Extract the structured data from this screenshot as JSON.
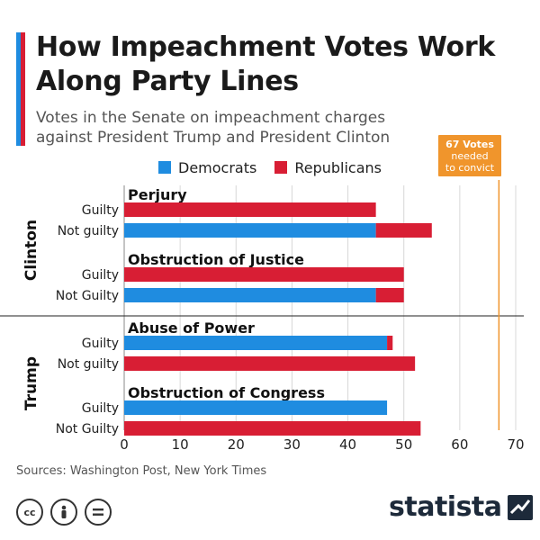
{
  "colors": {
    "democrats": "#1f8ce0",
    "republicans": "#d81e34",
    "threshold": "#f0952c",
    "accent_top": "#1f8ce0",
    "accent_bottom": "#d81e34",
    "grid": "#d8d8d8",
    "brand": "#1d2a3a"
  },
  "header": {
    "title": "How Impeachment Votes Work Along Party Lines",
    "subtitle": "Votes in the Senate on impeachment charges against President Trump and President Clinton"
  },
  "callout": {
    "line1": "67 Votes",
    "line2": "needed",
    "line3": "to convict"
  },
  "footer": {
    "source": "Sources: Washington Post, New York Times",
    "brand": "statista",
    "license_icons": [
      "cc-icon",
      "person-icon",
      "equals-icon"
    ]
  },
  "chart_data": {
    "type": "bar",
    "orientation": "horizontal",
    "stacked": true,
    "xlim": [
      0,
      70
    ],
    "xticks": [
      0,
      10,
      20,
      30,
      40,
      50,
      60,
      70
    ],
    "grid": true,
    "legend": [
      "Democrats",
      "Republicans"
    ],
    "legend_placement": "top",
    "threshold": {
      "value": 67,
      "label": "67 Votes needed to convict"
    },
    "groups": [
      {
        "name": "Clinton",
        "charges": [
          {
            "name": "Perjury",
            "rows": [
              {
                "label": "Guilty",
                "democrats": 0,
                "republicans": 45
              },
              {
                "label": "Not guilty",
                "democrats": 45,
                "republicans": 10
              }
            ]
          },
          {
            "name": "Obstruction of Justice",
            "rows": [
              {
                "label": "Guilty",
                "democrats": 0,
                "republicans": 50
              },
              {
                "label": "Not Guilty",
                "democrats": 45,
                "republicans": 5
              }
            ]
          }
        ]
      },
      {
        "name": "Trump",
        "charges": [
          {
            "name": "Abuse of Power",
            "rows": [
              {
                "label": "Guilty",
                "democrats": 47,
                "republicans": 1
              },
              {
                "label": "Not guilty",
                "democrats": 0,
                "republicans": 52
              }
            ]
          },
          {
            "name": "Obstruction of Congress",
            "rows": [
              {
                "label": "Guilty",
                "democrats": 47,
                "republicans": 0
              },
              {
                "label": "Not Guilty",
                "democrats": 0,
                "republicans": 53
              }
            ]
          }
        ]
      }
    ]
  }
}
